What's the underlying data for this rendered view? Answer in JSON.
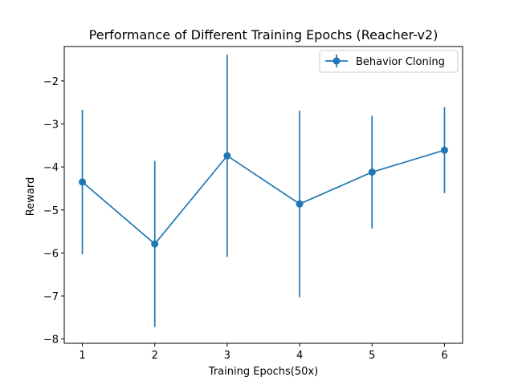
{
  "chart_data": {
    "type": "line",
    "title": "Performance of Different Training Epochs (Reacher-v2)",
    "xlabel": "Training Epochs(50x)",
    "ylabel": "Reward",
    "xlim": [
      0.75,
      6.25
    ],
    "ylim": [
      -8.1,
      -1.2
    ],
    "xticks": [
      1,
      2,
      3,
      4,
      5,
      6
    ],
    "yticks": [
      -8,
      -7,
      -6,
      -5,
      -4,
      -3,
      -2
    ],
    "ytick_labels": [
      "−8",
      "−7",
      "−6",
      "−5",
      "−4",
      "−3",
      "−2"
    ],
    "grid": false,
    "legend_position": "top-right",
    "series": [
      {
        "name": "Behavior Cloning",
        "color": "#1f77b4",
        "marker": "circle",
        "x": [
          1,
          2,
          3,
          4,
          5,
          6
        ],
        "y": [
          -4.35,
          -5.79,
          -3.74,
          -4.86,
          -4.12,
          -3.61
        ],
        "yerr": [
          1.68,
          1.93,
          2.35,
          2.17,
          1.31,
          1.0
        ]
      }
    ]
  }
}
